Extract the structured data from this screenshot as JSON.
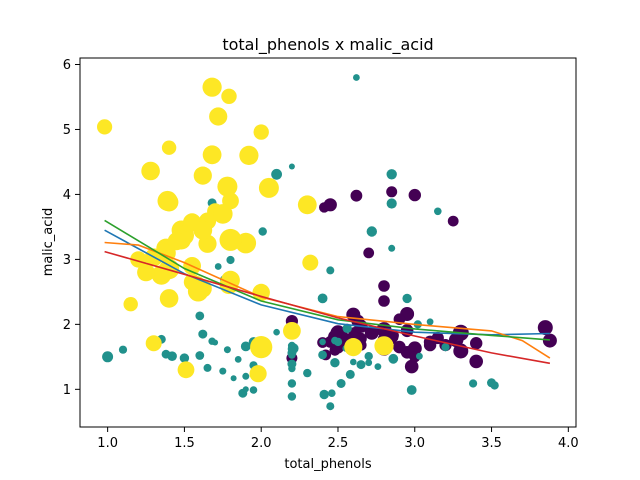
{
  "chart_data": {
    "type": "scatter",
    "title": "total_phenols x malic_acid",
    "xlabel": "total_phenols",
    "ylabel": "malic_acid",
    "xlim": [
      0.82,
      4.05
    ],
    "ylim": [
      0.42,
      6.1
    ],
    "xticks": [
      1.0,
      1.5,
      2.0,
      2.5,
      3.0,
      3.5,
      4.0
    ],
    "xtick_labels": [
      "1.0",
      "1.5",
      "2.0",
      "2.5",
      "3.0",
      "3.5",
      "4.0"
    ],
    "yticks": [
      1,
      2,
      3,
      4,
      5,
      6
    ],
    "ytick_labels": [
      "1",
      "2",
      "3",
      "4",
      "5",
      "6"
    ],
    "grid": false,
    "groups": [
      {
        "color": "#440154",
        "points": [
          [
            2.8,
            1.71,
            14.2
          ],
          [
            2.65,
            1.78,
            13.2
          ],
          [
            2.8,
            2.36,
            13.2
          ],
          [
            3.85,
            1.95,
            14.4
          ],
          [
            2.8,
            2.59,
            13.2
          ],
          [
            3.27,
            1.76,
            14.2
          ],
          [
            2.5,
            1.87,
            14.4
          ],
          [
            2.6,
            2.15,
            14.1
          ],
          [
            2.8,
            1.64,
            14.8
          ],
          [
            2.98,
            1.35,
            13.9
          ],
          [
            2.95,
            2.16,
            14.1
          ],
          [
            2.2,
            1.48,
            13.0
          ],
          [
            2.6,
            1.73,
            13.8
          ],
          [
            3.1,
            1.73,
            13.6
          ],
          [
            3.3,
            1.87,
            14.8
          ],
          [
            2.85,
            1.81,
            13.9
          ],
          [
            2.8,
            1.92,
            14.4
          ],
          [
            2.95,
            1.57,
            13.6
          ],
          [
            3.3,
            1.59,
            14.4
          ],
          [
            2.7,
            3.1,
            12.9
          ],
          [
            3.0,
            1.63,
            14.1
          ],
          [
            2.41,
            3.8,
            12.8
          ],
          [
            2.61,
            1.86,
            13.7
          ],
          [
            2.48,
            1.6,
            12.9
          ],
          [
            2.53,
            1.81,
            13.4
          ],
          [
            2.63,
            2.05,
            13.7
          ],
          [
            2.85,
            1.77,
            12.8
          ],
          [
            2.4,
            1.72,
            12.9
          ],
          [
            2.95,
            1.9,
            13.5
          ],
          [
            2.65,
            1.68,
            13.1
          ],
          [
            3.0,
            1.5,
            13.1
          ],
          [
            2.86,
            1.83,
            13.1
          ],
          [
            2.42,
            1.53,
            12.9
          ],
          [
            2.62,
            1.8,
            13.5
          ],
          [
            2.48,
            1.81,
            13.9
          ],
          [
            2.5,
            1.64,
            13.3
          ],
          [
            2.2,
            2.05,
            13.4
          ],
          [
            2.65,
            1.97,
            13.8
          ],
          [
            2.45,
            1.73,
            13.3
          ],
          [
            3.4,
            1.71,
            13.5
          ],
          [
            3.25,
            3.59,
            12.9
          ],
          [
            2.64,
            1.77,
            13.6
          ],
          [
            3.0,
            3.99,
            13.5
          ],
          [
            2.85,
            4.04,
            13.0
          ],
          [
            2.62,
            3.98,
            13.3
          ],
          [
            3.88,
            1.75,
            14.1
          ],
          [
            2.72,
            1.87,
            14.1
          ],
          [
            2.45,
            3.84,
            13.8
          ],
          [
            3.4,
            1.43,
            13.9
          ],
          [
            3.2,
            1.68,
            13.4
          ],
          [
            3.15,
            1.79,
            13.4
          ],
          [
            2.9,
            1.65,
            13.6
          ],
          [
            2.6,
            1.68,
            13.7
          ],
          [
            2.95,
            1.91,
            13.5
          ],
          [
            2.8,
            1.77,
            13.6
          ],
          [
            3.1,
            1.68,
            13.5
          ],
          [
            2.9,
            2.08,
            13.2
          ],
          [
            2.55,
            1.7,
            14.1
          ],
          [
            2.6,
            1.8,
            13.6
          ]
        ]
      },
      {
        "color": "#21918c",
        "points": [
          [
            1.1,
            1.61,
            12.0
          ],
          [
            1.88,
            0.94,
            12.3
          ],
          [
            2.2,
            1.09,
            12.1
          ],
          [
            2.62,
            5.8,
            11.5
          ],
          [
            2.41,
            0.92,
            12.4
          ],
          [
            1.98,
            1.24,
            12.0
          ],
          [
            2.2,
            1.56,
            12.3
          ],
          [
            3.5,
            1.1,
            12.3
          ],
          [
            2.2,
            0.89,
            12.1
          ],
          [
            2.3,
            1.25,
            12.1
          ],
          [
            1.95,
            1.37,
            12.0
          ],
          [
            1.75,
            1.28,
            11.6
          ],
          [
            1.35,
            1.77,
            12.2
          ],
          [
            2.55,
            1.63,
            11.4
          ],
          [
            2.0,
            1.65,
            12.4
          ],
          [
            2.4,
            2.4,
            12.6
          ],
          [
            2.2,
            1.53,
            11.8
          ],
          [
            3.03,
            1.51,
            11.5
          ],
          [
            3.02,
            2.0,
            12.0
          ],
          [
            2.56,
            1.94,
            12.4
          ],
          [
            2.98,
            0.99,
            12.6
          ],
          [
            2.86,
            1.47,
            12.6
          ],
          [
            2.2,
            4.43,
            11.1
          ],
          [
            1.9,
            1.66,
            12.6
          ],
          [
            2.52,
            1.09,
            12.3
          ],
          [
            1.6,
            1.52,
            12.2
          ],
          [
            2.1,
            1.88,
            11.4
          ],
          [
            1.0,
            1.5,
            13.0
          ],
          [
            2.72,
            3.43,
            12.8
          ],
          [
            2.45,
            0.74,
            11.9
          ],
          [
            3.1,
            2.04,
            11.5
          ],
          [
            2.85,
            3.86,
            12.7
          ],
          [
            2.48,
            1.75,
            11.8
          ],
          [
            1.68,
            3.87,
            12.3
          ],
          [
            1.38,
            1.54,
            12.2
          ],
          [
            2.2,
            1.32,
            11.7
          ],
          [
            2.85,
            4.31,
            12.8
          ],
          [
            2.7,
            1.41,
            11.5
          ],
          [
            1.62,
            1.85,
            12.3
          ],
          [
            2.0,
            1.63,
            11.4
          ],
          [
            1.95,
            1.24,
            11.5
          ],
          [
            1.7,
            1.72,
            11.2
          ],
          [
            2.01,
            3.43,
            12.1
          ],
          [
            1.72,
            2.89,
            11.5
          ],
          [
            1.78,
            1.61,
            11.6
          ],
          [
            2.21,
            1.63,
            12.8
          ],
          [
            2.45,
            2.83,
            11.9
          ],
          [
            3.52,
            1.06,
            12.1
          ],
          [
            3.38,
            1.09,
            12.0
          ],
          [
            2.46,
            0.94,
            11.8
          ],
          [
            2.2,
            1.39,
            12.3
          ],
          [
            2.7,
            1.51,
            12.1
          ],
          [
            2.85,
            3.17,
            11.6
          ],
          [
            2.2,
            1.67,
            11.9
          ],
          [
            2.6,
            1.42,
            11.4
          ],
          [
            2.95,
            2.4,
            12.4
          ],
          [
            1.82,
            1.17,
            11.2
          ],
          [
            3.15,
            3.74,
            11.8
          ],
          [
            2.4,
            1.73,
            11.4
          ],
          [
            2.76,
            1.35,
            11.5
          ],
          [
            1.8,
            2.99,
            12.0
          ],
          [
            1.65,
            1.33,
            11.9
          ],
          [
            1.6,
            2.13,
            12.2
          ],
          [
            2.1,
            4.31,
            12.9
          ],
          [
            1.95,
            1.73,
            12.5
          ],
          [
            1.9,
            1.0,
            11.2
          ],
          [
            2.2,
            1.62,
            12.1
          ],
          [
            2.65,
            1.38,
            12.3
          ],
          [
            1.9,
            1.2,
            11.6
          ],
          [
            2.5,
            1.73,
            12.1
          ],
          [
            1.5,
            1.48,
            12.4
          ],
          [
            1.68,
            1.74,
            11.7
          ],
          [
            2.4,
            1.53,
            12.2
          ],
          [
            1.95,
            0.99,
            11.8
          ],
          [
            3.2,
            1.65,
            12.0
          ],
          [
            1.42,
            1.51,
            12.5
          ],
          [
            1.76,
            2.69,
            12.1
          ],
          [
            2.58,
            1.23,
            12.3
          ],
          [
            1.85,
            1.46,
            11.5
          ],
          [
            2.48,
            1.41,
            12.4
          ]
        ]
      },
      {
        "color": "#fde725",
        "points": [
          [
            1.51,
            1.3,
            15.1
          ],
          [
            1.3,
            1.71,
            14.8
          ],
          [
            1.15,
            2.31,
            14.2
          ],
          [
            1.7,
            3.74,
            14.8
          ],
          [
            2.0,
            2.49,
            15.3
          ],
          [
            1.62,
            4.29,
            15.6
          ],
          [
            1.38,
            3.17,
            16.0
          ],
          [
            1.79,
            5.51,
            14.6
          ],
          [
            1.65,
            3.59,
            15.2
          ],
          [
            2.0,
            1.65,
            17.0
          ],
          [
            1.79,
            2.61,
            15.8
          ],
          [
            1.4,
            3.88,
            15.7
          ],
          [
            1.48,
            3.45,
            16.0
          ],
          [
            1.62,
            2.55,
            15.5
          ],
          [
            2.2,
            1.9,
            15.4
          ],
          [
            1.4,
            2.4,
            15.7
          ],
          [
            1.92,
            4.6,
            15.9
          ],
          [
            1.55,
            3.57,
            15.6
          ],
          [
            1.78,
            4.12,
            16.2
          ],
          [
            1.8,
            2.68,
            15.8
          ],
          [
            1.58,
            2.61,
            15.3
          ],
          [
            1.68,
            4.61,
            15.8
          ],
          [
            1.65,
            3.24,
            15.6
          ],
          [
            1.3,
            3.03,
            15.5
          ],
          [
            1.4,
            2.85,
            16.3
          ],
          [
            1.5,
            3.37,
            15.9
          ],
          [
            2.3,
            3.84,
            15.8
          ],
          [
            1.38,
            3.1,
            16.1
          ],
          [
            2.05,
            4.1,
            16.2
          ],
          [
            1.39,
            3.9,
            16.2
          ],
          [
            1.35,
            2.76,
            16.0
          ],
          [
            1.59,
            2.51,
            16.4
          ],
          [
            1.72,
            5.2,
            15.6
          ],
          [
            1.9,
            3.25,
            16.4
          ],
          [
            1.68,
            5.65,
            15.9
          ],
          [
            1.8,
            3.3,
            16.9
          ],
          [
            1.48,
            3.3,
            15.9
          ],
          [
            1.2,
            3.0,
            14.9
          ],
          [
            1.55,
            2.65,
            15.0
          ],
          [
            1.8,
            3.9,
            15.1
          ],
          [
            2.0,
            4.96,
            14.6
          ],
          [
            2.6,
            1.65,
            15.6
          ],
          [
            1.4,
            4.72,
            14.2
          ],
          [
            0.98,
            5.04,
            14.5
          ],
          [
            1.28,
            4.36,
            15.7
          ],
          [
            1.45,
            3.28,
            15.5
          ],
          [
            1.62,
            3.45,
            15.8
          ],
          [
            1.75,
            3.7,
            16.1
          ],
          [
            2.8,
            1.67,
            15.9
          ],
          [
            1.25,
            2.8,
            15.4
          ],
          [
            1.98,
            1.24,
            15.2
          ],
          [
            1.55,
            2.9,
            15.4
          ],
          [
            2.32,
            2.95,
            14.8
          ]
        ]
      }
    ],
    "fit_lines": [
      {
        "color": "#1f77b4",
        "x": [
          0.98,
          1.5,
          2.0,
          2.5,
          3.0,
          3.5,
          3.88
        ],
        "y": [
          3.45,
          2.78,
          2.3,
          2.01,
          1.88,
          1.84,
          1.86
        ]
      },
      {
        "color": "#ff7f0e",
        "x": [
          0.98,
          1.2,
          1.5,
          2.0,
          2.5,
          3.0,
          3.5,
          3.7,
          3.88
        ],
        "y": [
          3.26,
          3.22,
          2.95,
          2.42,
          2.12,
          2.0,
          1.9,
          1.75,
          1.48
        ]
      },
      {
        "color": "#2ca02c",
        "x": [
          0.98,
          1.5,
          2.0,
          2.5,
          3.0,
          3.5,
          3.88
        ],
        "y": [
          3.6,
          2.86,
          2.36,
          2.07,
          1.93,
          1.83,
          1.76
        ]
      },
      {
        "color": "#d62728",
        "x": [
          0.98,
          1.5,
          2.0,
          2.5,
          3.0,
          3.5,
          3.88
        ],
        "y": [
          3.12,
          2.77,
          2.43,
          2.1,
          1.82,
          1.56,
          1.4
        ]
      }
    ]
  }
}
